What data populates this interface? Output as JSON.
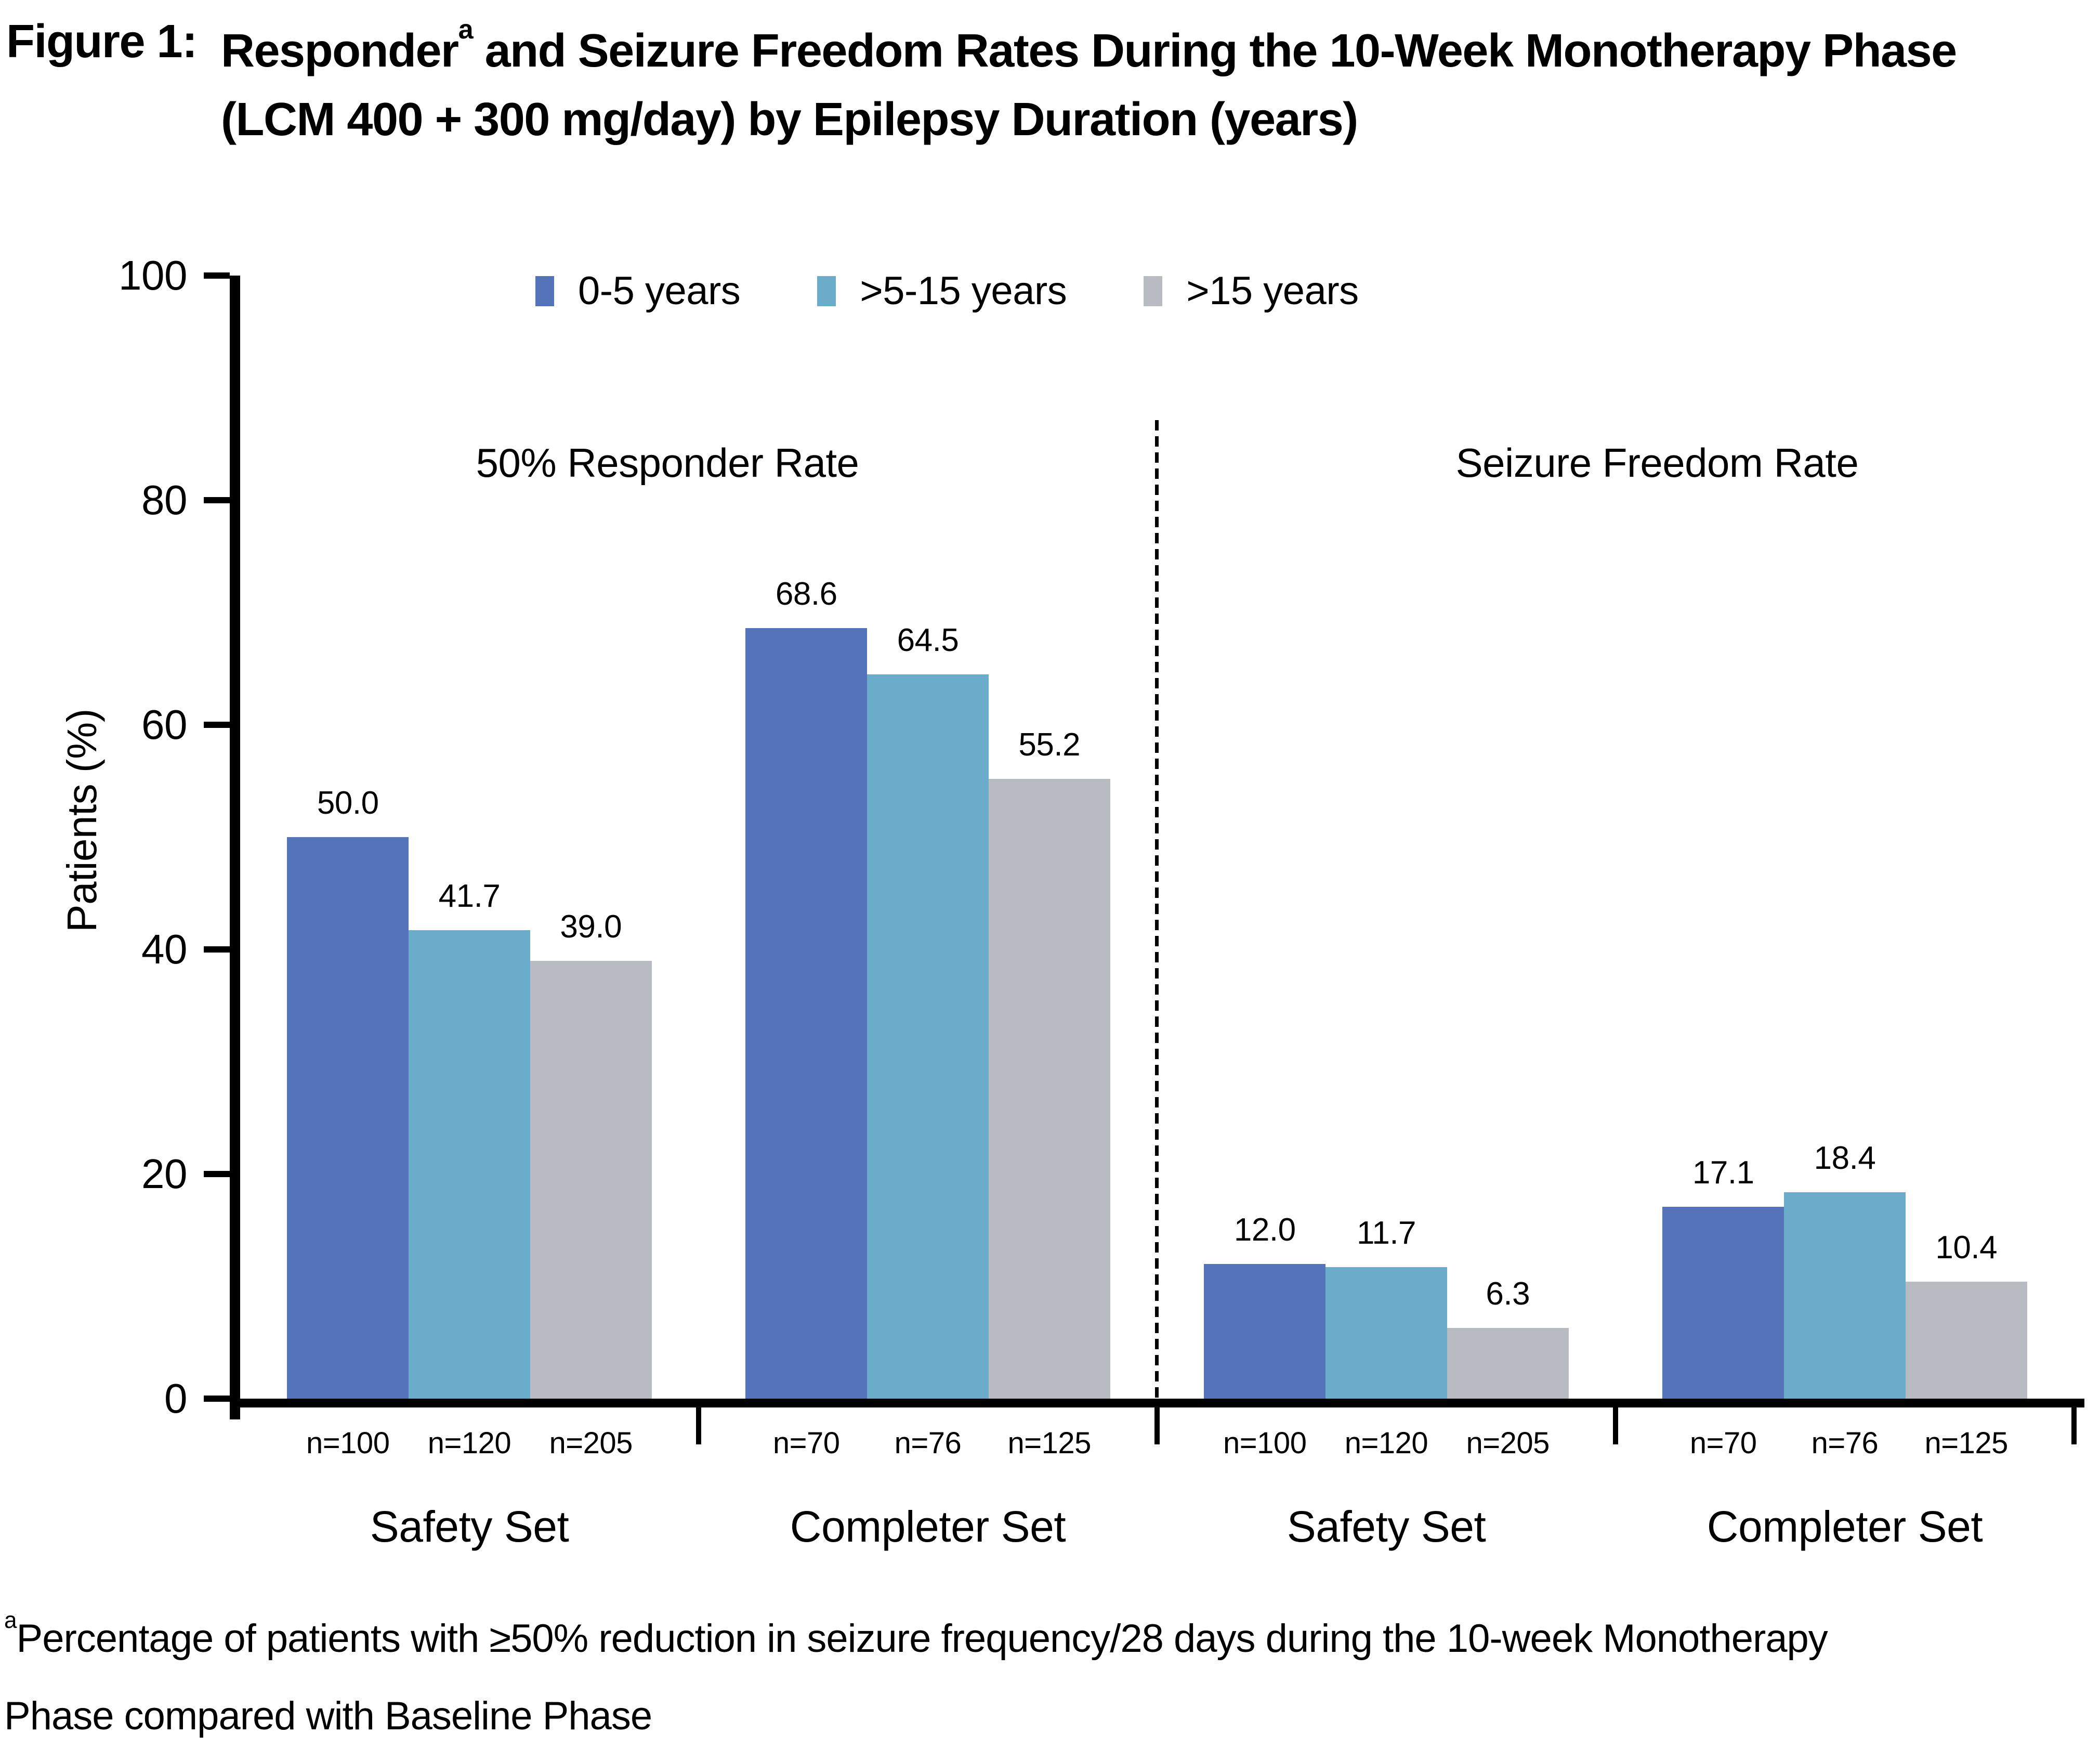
{
  "figure": {
    "label": "Figure 1:",
    "title_part1": "Responder",
    "title_sup": "a",
    "title_part2": " and Seizure Freedom Rates During the 10-Week Monotherapy Phase",
    "title_line2": "(LCM 400 + 300 mg/day) by Epilepsy Duration (years)"
  },
  "footnote": {
    "sup": "a",
    "line1": "Percentage of patients with ≥50% reduction in seizure frequency/28 days during the 10-week Monotherapy",
    "line2": "Phase compared with Baseline Phase"
  },
  "chart_data": {
    "type": "bar",
    "title": "Figure 1: Responder(a) and Seizure Freedom Rates During the 10-Week Monotherapy Phase (LCM 400 + 300 mg/day) by Epilepsy Duration (years)",
    "ylabel": "Patients (%)",
    "ylim": [
      0,
      100
    ],
    "yticks": [
      0,
      20,
      40,
      60,
      80,
      100
    ],
    "grid": false,
    "legend_position": "top",
    "axis_color": "#000000",
    "sections": [
      {
        "label": "50% Responder Rate",
        "group_indexes": [
          0,
          1
        ]
      },
      {
        "label": "Seizure Freedom Rate",
        "group_indexes": [
          2,
          3
        ]
      }
    ],
    "categories": [
      "Safety Set",
      "Completer Set",
      "Safety Set",
      "Completer Set"
    ],
    "n_labels": [
      [
        "n=100",
        "n=120",
        "n=205"
      ],
      [
        "n=70",
        "n=76",
        "n=125"
      ],
      [
        "n=100",
        "n=120",
        "n=205"
      ],
      [
        "n=70",
        "n=76",
        "n=125"
      ]
    ],
    "series": [
      {
        "name": "0-5 years",
        "color": "#5473b9",
        "values": [
          50.0,
          68.6,
          12.0,
          17.1
        ],
        "labels": [
          "50.0",
          "68.6",
          "12.0",
          "17.1"
        ]
      },
      {
        "name": ">5-15 years",
        "color": "#6aacca",
        "values": [
          41.7,
          64.5,
          11.7,
          18.4
        ],
        "labels": [
          "41.7",
          "64.5",
          "11.7",
          "18.4"
        ]
      },
      {
        "name": ">15 years",
        "color": "#b8bbc2",
        "values": [
          39.0,
          55.2,
          6.3,
          10.4
        ],
        "labels": [
          "39.0",
          "55.2",
          "6.3",
          "10.4"
        ]
      }
    ]
  }
}
